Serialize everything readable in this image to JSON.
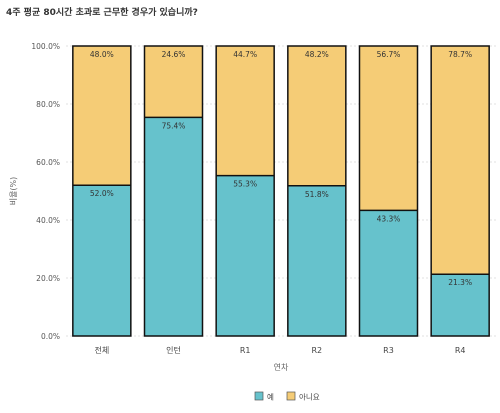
{
  "chart_data": {
    "type": "bar",
    "stacked": true,
    "title": "4주 평균 80시간 초과로 근무한 경우가 있습니까?",
    "xlabel": "연차",
    "ylabel": "비율(%)",
    "categories": [
      "전체",
      "인턴",
      "R1",
      "R2",
      "R3",
      "R4"
    ],
    "ylim": [
      0,
      100
    ],
    "yticks": [
      0,
      20,
      40,
      60,
      80,
      100
    ],
    "ytick_labels": [
      "0.0%",
      "20.0%",
      "40.0%",
      "60.0%",
      "80.0%",
      "100.0%"
    ],
    "series": [
      {
        "name": "예",
        "color": "#66c2cc",
        "values": [
          52.0,
          75.4,
          55.3,
          51.8,
          43.3,
          21.3
        ],
        "labels": [
          "52.0%",
          "75.4%",
          "55.3%",
          "51.8%",
          "43.3%",
          "21.3%"
        ]
      },
      {
        "name": "아니요",
        "color": "#f5cc76",
        "values": [
          48.0,
          24.6,
          44.7,
          48.2,
          56.7,
          78.7
        ],
        "labels": [
          "48.0%",
          "24.6%",
          "44.7%",
          "48.2%",
          "56.7%",
          "78.7%"
        ]
      }
    ],
    "grid": true,
    "legend": "bottom-center"
  }
}
